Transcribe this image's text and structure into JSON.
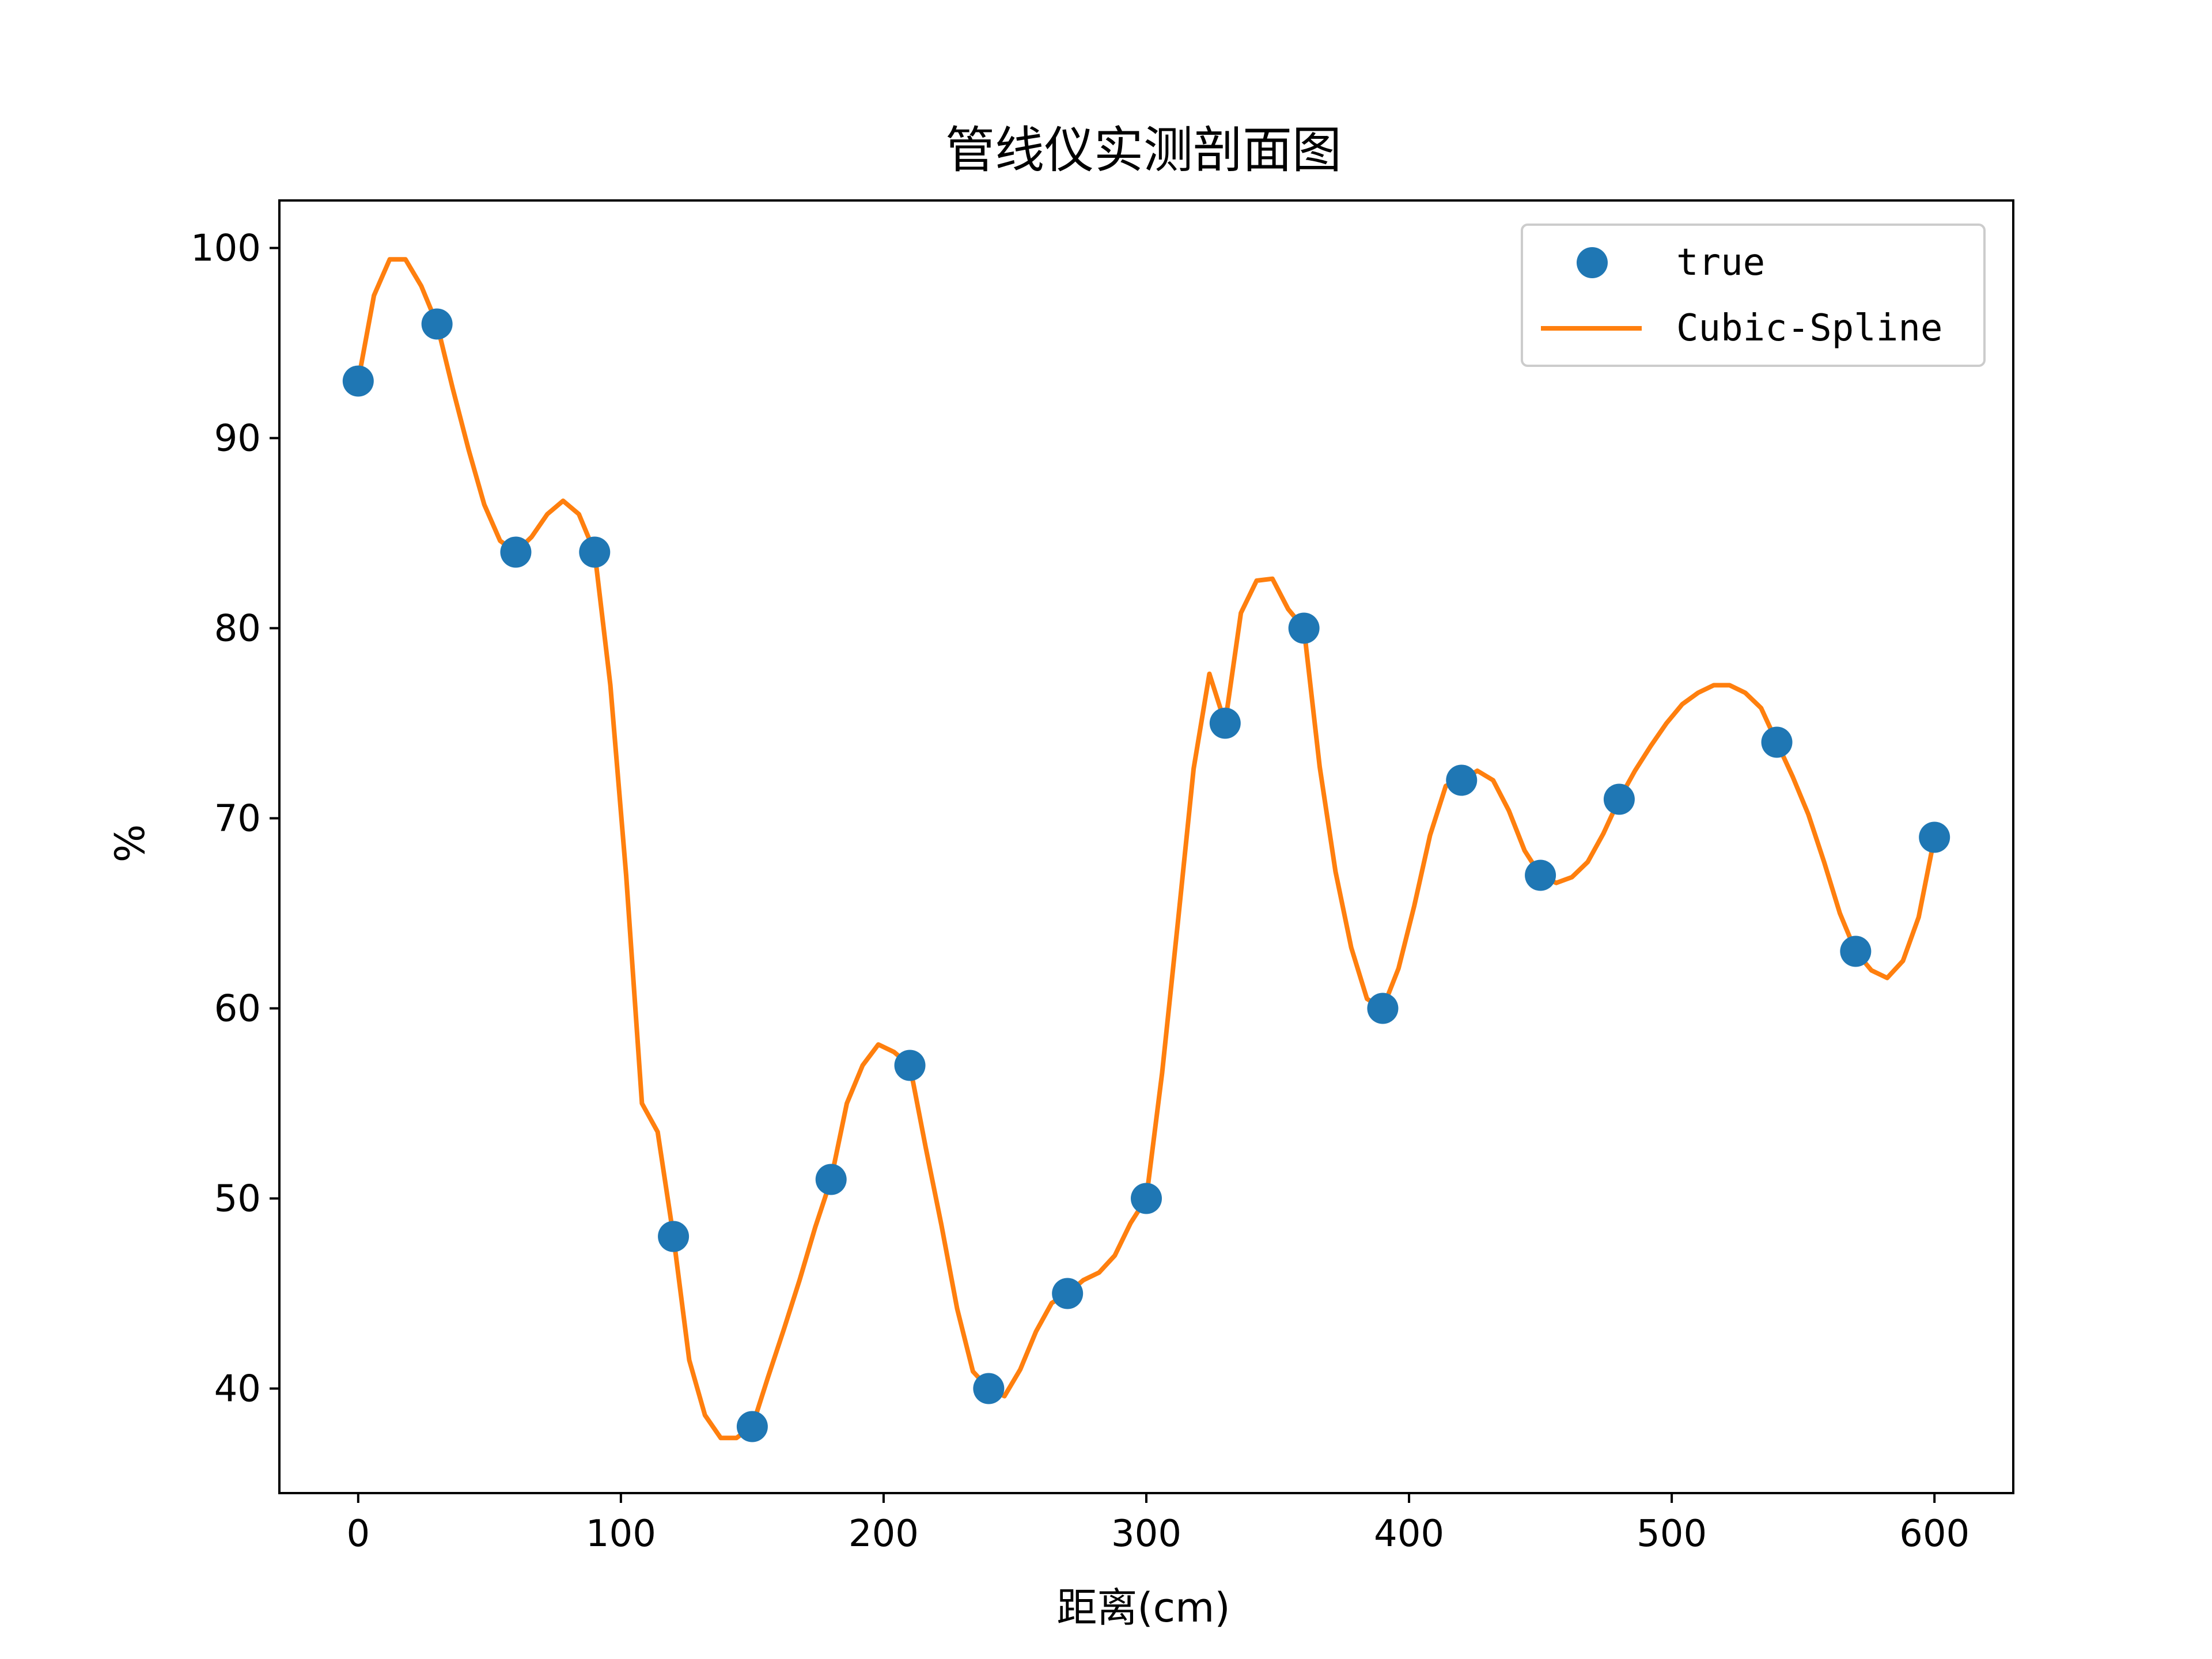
{
  "chart_data": {
    "type": "line",
    "title": "管线仪实测剖面图",
    "xlabel": "距离(cm)",
    "ylabel": "%",
    "xlim": [
      -30,
      630
    ],
    "ylim": [
      34.5,
      102.5
    ],
    "xticks": [
      0,
      100,
      200,
      300,
      400,
      500,
      600
    ],
    "yticks": [
      40,
      50,
      60,
      70,
      80,
      90,
      100
    ],
    "grid": false,
    "legend": "top-right",
    "series": [
      {
        "name": "true",
        "kind": "scatter",
        "color": "#1f77b4",
        "x": [
          0,
          30,
          60,
          90,
          120,
          150,
          180,
          210,
          240,
          270,
          300,
          330,
          360,
          390,
          420,
          450,
          480,
          510,
          540,
          570,
          600
        ],
        "y": [
          93,
          96,
          84,
          84,
          48,
          38,
          51,
          57,
          40,
          45,
          50,
          75,
          80,
          60,
          72,
          67,
          71,
          null,
          74,
          63,
          69
        ]
      },
      {
        "name": "Cubic-Spline",
        "kind": "line",
        "color": "#ff7f0e",
        "x": [
          0,
          6,
          12,
          18,
          24,
          30,
          36,
          42,
          48,
          54,
          60,
          66,
          72,
          78,
          84,
          90,
          96,
          102,
          108,
          114,
          120,
          126,
          132,
          138,
          144,
          150,
          156,
          162,
          168,
          174,
          180,
          186,
          192,
          198,
          204,
          210,
          216,
          222,
          228,
          234,
          240,
          246,
          252,
          258,
          264,
          270,
          276,
          282,
          288,
          294,
          300,
          306,
          312,
          318,
          324,
          330,
          336,
          342,
          348,
          354,
          360,
          366,
          372,
          378,
          384,
          390,
          396,
          402,
          408,
          414,
          420,
          426,
          432,
          438,
          444,
          450,
          456,
          462,
          468,
          474,
          480,
          486,
          492,
          498,
          504,
          510,
          516,
          522,
          528,
          534,
          540,
          546,
          552,
          558,
          564,
          570,
          576,
          582,
          588,
          594,
          600
        ],
        "y": [
          93.0,
          97.5,
          99.4,
          99.4,
          98.0,
          96.0,
          92.6,
          89.4,
          86.5,
          84.6,
          84.0,
          84.8,
          86.0,
          86.7,
          86.0,
          84.0,
          77.0,
          67.0,
          55.0,
          53.5,
          48.0,
          41.5,
          38.6,
          37.4,
          37.4,
          38.0,
          40.6,
          43.1,
          45.7,
          48.5,
          51.0,
          55.0,
          57.0,
          58.1,
          57.7,
          57.0,
          52.7,
          48.6,
          44.2,
          40.9,
          40.0,
          39.6,
          41.0,
          43.0,
          44.5,
          45.0,
          45.7,
          46.1,
          47.0,
          48.7,
          50.0,
          56.6,
          64.5,
          72.6,
          77.6,
          75.0,
          80.8,
          82.5,
          82.6,
          81.0,
          80.0,
          72.7,
          67.2,
          63.2,
          60.5,
          60.0,
          62.1,
          65.4,
          69.1,
          71.7,
          72.0,
          72.5,
          72.0,
          70.4,
          68.3,
          67.0,
          66.6,
          66.9,
          67.7,
          69.2,
          71.0,
          72.5,
          73.8,
          75.0,
          76.0,
          76.6,
          77.0,
          77.0,
          76.6,
          75.8,
          74.0,
          72.2,
          70.2,
          67.7,
          65.0,
          63.0,
          62.0,
          61.6,
          62.5,
          64.8,
          69.0
        ]
      }
    ]
  }
}
